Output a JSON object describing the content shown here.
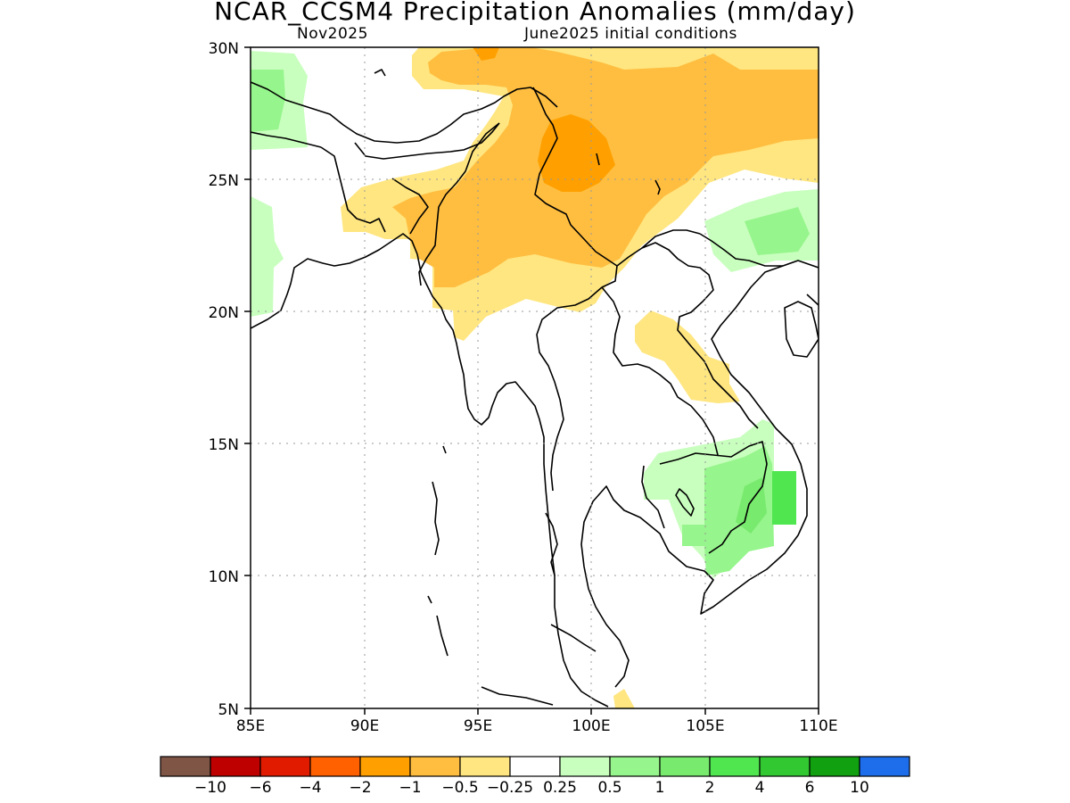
{
  "title": "NCAR_CCSM4 Precipitation Anomalies (mm/day)",
  "subtitle_left": "Nov2025",
  "subtitle_right": "June2025 initial conditions",
  "axes": {
    "x_ticks": [
      "85E",
      "90E",
      "95E",
      "100E",
      "105E",
      "110E"
    ],
    "y_ticks": [
      "30N",
      "25N",
      "20N",
      "15N",
      "10N",
      "5N"
    ],
    "lon_range": [
      85,
      110
    ],
    "lat_range": [
      5,
      30
    ],
    "grid": "dotted"
  },
  "colorbar": {
    "colors": [
      "#7f5545",
      "#be0000",
      "#e01b00",
      "#ff6000",
      "#ffa000",
      "#ffbe40",
      "#ffe680",
      "#ffffff",
      "#c8ffbe",
      "#96f58c",
      "#78ea6e",
      "#50e650",
      "#32c832",
      "#10a010",
      "#1e6eeb"
    ],
    "labels": [
      "-10",
      "-6",
      "-4",
      "-2",
      "-1",
      "-0.5",
      "-0.25",
      "0.25",
      "0.5",
      "1",
      "2",
      "4",
      "6",
      "10"
    ]
  }
}
